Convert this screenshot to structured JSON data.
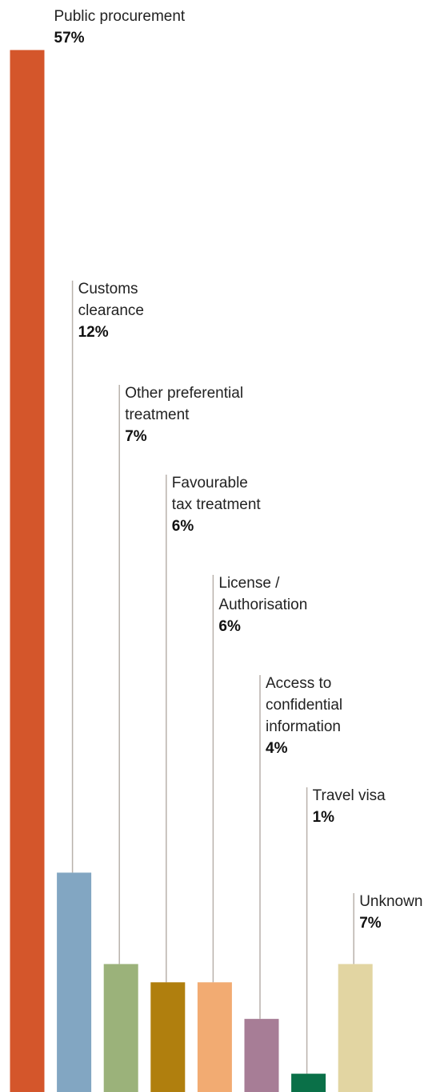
{
  "chart_data": {
    "type": "bar",
    "categories": [
      "Public procurement",
      "Customs clearance",
      "Other preferential treatment",
      "Favourable tax treatment",
      "License / Authorisation",
      "Access to confidential information",
      "Travel visa",
      "Unknown"
    ],
    "category_lines": [
      [
        "Public procurement"
      ],
      [
        "Customs",
        "clearance"
      ],
      [
        "Other preferential",
        "treatment"
      ],
      [
        "Favourable",
        "tax treatment"
      ],
      [
        "License /",
        "Authorisation"
      ],
      [
        "Access to",
        "confidential",
        "information"
      ],
      [
        "Travel visa"
      ],
      [
        "Unknown"
      ]
    ],
    "values": [
      57,
      12,
      7,
      6,
      6,
      4,
      1,
      7
    ],
    "value_labels": [
      "57%",
      "12%",
      "7%",
      "6%",
      "6%",
      "4%",
      "1%",
      "7%"
    ],
    "colors": [
      "#d4562b",
      "#82a6c2",
      "#9bb27a",
      "#b07f0e",
      "#f2ab72",
      "#a77d96",
      "#0a7048",
      "#e2d5a2"
    ],
    "unit": "%",
    "title": "",
    "xlabel": "",
    "ylabel": "",
    "grid": false,
    "legend": "none"
  }
}
